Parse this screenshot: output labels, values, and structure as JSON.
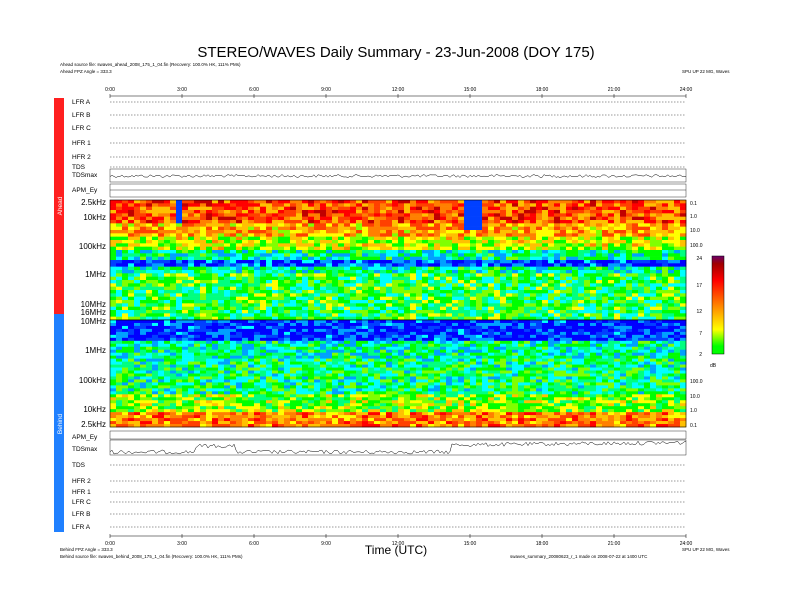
{
  "header": {
    "title": "STEREO/WAVES Daily Summary - 23-Jun-2008 (DOY 175)",
    "ahead_source": "Ahead source file: swaves_ahead_2008_175_1_04.fin (Recovery: 100.0% HK, 111% PMs)",
    "ahead_angle": "Ahead FPZ Angle = 333.3",
    "top_right_note": "SPU UP 22 MG, Waves"
  },
  "footer": {
    "behind_angle": "Behind FPZ Angle = 333.3",
    "behind_source": "Behind source file: swaves_behind_2008_175_1_04.fin (Recovery: 100.0% HK, 111% PMs)",
    "right_note_1": "SPU UP 22 MG, Waves",
    "right_note_2": "swaves_summary_20080623_r_1 made on 2008-07-22 at 1400 UTC",
    "x_title": "Time (UTC)"
  },
  "side_labels": {
    "ahead": "Ahead",
    "behind": "Behind"
  },
  "ahead_rows": [
    "LFR A",
    "LFR B",
    "LFR C",
    "HFR 1",
    "HFR 2",
    "TDS",
    "TDSmax",
    "APM_Ey"
  ],
  "behind_rows": [
    "APM_Ey",
    "TDSmax",
    "TDS",
    "HFR 2",
    "HFR 1",
    "LFR C",
    "LFR B",
    "LFR A"
  ],
  "colorbar": {
    "ticks": [
      "24",
      "17",
      "12",
      "7",
      "2"
    ],
    "unit": "dB",
    "colors": [
      "#ff00ff",
      "#ff0000",
      "#ff7f00",
      "#ffff00",
      "#00ff00",
      "#00ffff",
      "#0000ff"
    ]
  },
  "chart_data": {
    "type": "heatmap",
    "title": "STEREO/WAVES Daily Summary - 23-Jun-2008 (DOY 175)",
    "xlabel": "Time (UTC)",
    "x_ticks": [
      "0:00",
      "3:00",
      "6:00",
      "9:00",
      "12:00",
      "15:00",
      "18:00",
      "21:00",
      "24:00"
    ],
    "xlim": [
      0,
      24
    ],
    "panels": [
      {
        "name": "Ahead",
        "y_ticks": [
          "2.5kHz",
          "10kHz",
          "100kHz",
          "1MHz",
          "10MHz",
          "16MHz",
          "10MHz"
        ],
        "y_ticks_right": [
          "0.1",
          "1.0",
          "10.0",
          "100.0"
        ]
      },
      {
        "name": "Behind",
        "y_ticks": [
          "1MHz",
          "100kHz",
          "10kHz",
          "2.5kHz"
        ],
        "y_ticks_right": [
          "100.0",
          "10.0",
          "1.0",
          "0.1"
        ]
      }
    ],
    "colorbar_range": [
      2,
      24
    ],
    "colorbar_unit": "dB"
  }
}
